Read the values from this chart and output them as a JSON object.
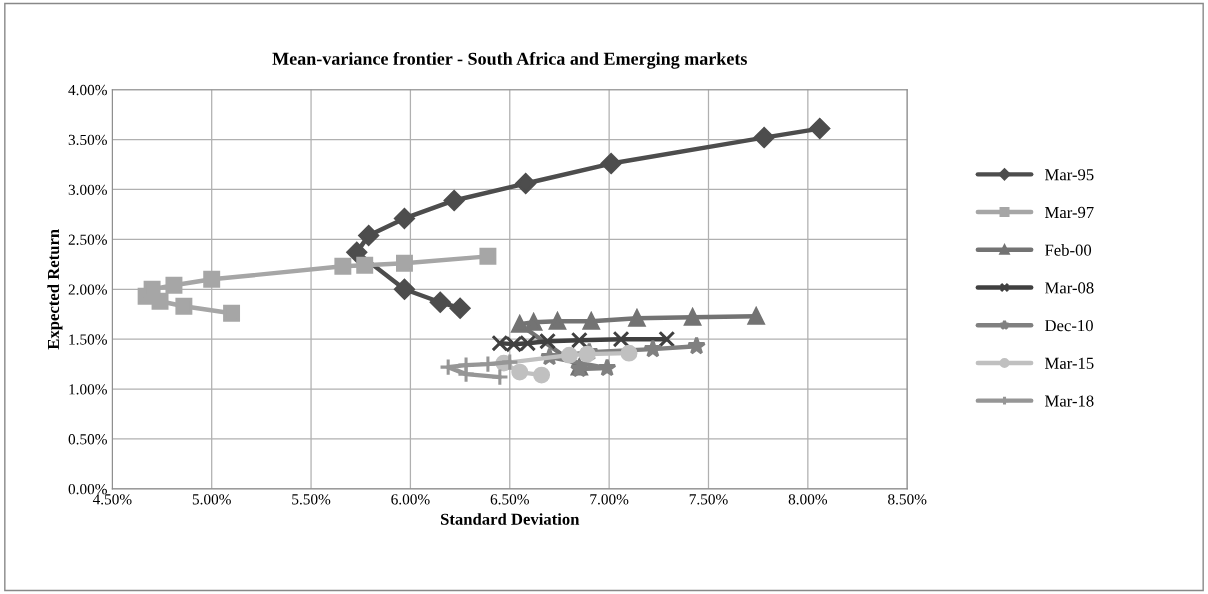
{
  "chart_data": {
    "type": "line",
    "title": "Mean-variance frontier - South Africa and Emerging markets",
    "xlabel": "Standard Deviation",
    "ylabel": "Expected Return",
    "xlim": [
      4.5,
      8.5
    ],
    "ylim": [
      0,
      4.0
    ],
    "xticks": [
      {
        "value": 4.5,
        "label": "4.50%"
      },
      {
        "value": 5.0,
        "label": "5.00%"
      },
      {
        "value": 5.5,
        "label": "5.50%"
      },
      {
        "value": 6.0,
        "label": "6.00%"
      },
      {
        "value": 6.5,
        "label": "6.50%"
      },
      {
        "value": 7.0,
        "label": "7.00%"
      },
      {
        "value": 7.5,
        "label": "7.50%"
      },
      {
        "value": 8.0,
        "label": "8.00%"
      },
      {
        "value": 8.5,
        "label": "8.50%"
      }
    ],
    "yticks": [
      {
        "value": 0,
        "label": "0.00%"
      },
      {
        "value": 0.5,
        "label": "0.50%"
      },
      {
        "value": 1.0,
        "label": "1.00%"
      },
      {
        "value": 1.5,
        "label": "1.50%"
      },
      {
        "value": 2.0,
        "label": "2.00%"
      },
      {
        "value": 2.5,
        "label": "2.50%"
      },
      {
        "value": 3.0,
        "label": "3.00%"
      },
      {
        "value": 3.5,
        "label": "3.50%"
      },
      {
        "value": 4.0,
        "label": "4.00%"
      }
    ],
    "grid": true,
    "legend": "right",
    "series": [
      {
        "name": "Mar-95",
        "color": "#4d4d4d",
        "marker": "diamond",
        "x": [
          6.25,
          6.15,
          5.97,
          5.73,
          5.79,
          5.97,
          6.22,
          6.58,
          7.01,
          7.78,
          8.06
        ],
        "values": [
          1.81,
          1.87,
          2.0,
          2.37,
          2.54,
          2.71,
          2.89,
          3.06,
          3.26,
          3.52,
          3.61
        ]
      },
      {
        "name": "Mar-97",
        "color": "#a6a6a6",
        "marker": "square",
        "x": [
          5.1,
          4.86,
          4.74,
          4.67,
          4.7,
          4.81,
          5.0,
          5.66,
          5.77,
          5.97,
          6.39
        ],
        "values": [
          1.76,
          1.83,
          1.88,
          1.93,
          2.0,
          2.04,
          2.1,
          2.23,
          2.24,
          2.26,
          2.33
        ]
      },
      {
        "name": "Feb-00",
        "color": "#737373",
        "marker": "triangle",
        "x": [
          6.85,
          6.55,
          6.62,
          6.74,
          6.91,
          7.14,
          7.42,
          7.74
        ],
        "values": [
          1.22,
          1.65,
          1.67,
          1.68,
          1.68,
          1.71,
          1.72,
          1.73
        ]
      },
      {
        "name": "Mar-08",
        "color": "#404040",
        "marker": "cross",
        "x": [
          6.45,
          6.52,
          6.59,
          6.69,
          6.85,
          7.06,
          7.29
        ],
        "values": [
          1.46,
          1.45,
          1.46,
          1.48,
          1.49,
          1.5,
          1.5
        ]
      },
      {
        "name": "Dec-10",
        "color": "#808080",
        "marker": "star",
        "x": [
          6.85,
          6.99,
          6.7,
          6.9,
          7.22,
          7.44
        ],
        "values": [
          1.2,
          1.21,
          1.32,
          1.37,
          1.4,
          1.43
        ]
      },
      {
        "name": "Mar-15",
        "color": "#c0c0c0",
        "marker": "circle",
        "x": [
          6.66,
          6.55,
          6.47,
          6.8,
          6.89,
          7.1
        ],
        "values": [
          1.14,
          1.17,
          1.26,
          1.34,
          1.35,
          1.36
        ]
      },
      {
        "name": "Mar-18",
        "color": "#969696",
        "marker": "plus",
        "x": [
          6.45,
          6.28,
          6.19,
          6.28,
          6.39,
          6.5
        ],
        "values": [
          1.12,
          1.15,
          1.22,
          1.24,
          1.25,
          1.27
        ]
      }
    ]
  }
}
